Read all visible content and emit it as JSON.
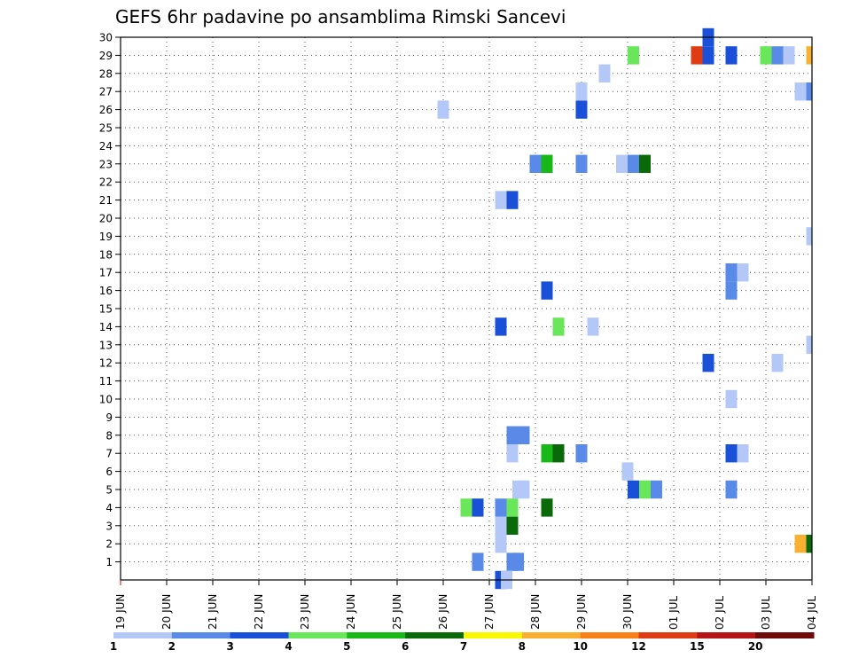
{
  "chart_data": {
    "type": "heatmap",
    "title": "GEFS 6hr padavine po ansamblima Rimski Sancevi",
    "x_ticks": [
      "19 JUN",
      "20 JUN",
      "21 JUN",
      "22 JUN",
      "23 JUN",
      "24 JUN",
      "25 JUN",
      "26 JUN",
      "27 JUN",
      "28 JUN",
      "29 JUN",
      "30 JUN",
      "01 JUL",
      "02 JUL",
      "03 JUL",
      "04 JUL"
    ],
    "y_ticks": [
      "1",
      "2",
      "3",
      "4",
      "5",
      "6",
      "7",
      "8",
      "9",
      "10",
      "11",
      "12",
      "13",
      "14",
      "15",
      "16",
      "17",
      "18",
      "19",
      "20",
      "21",
      "22",
      "23",
      "24",
      "25",
      "26",
      "27",
      "28",
      "29",
      "30"
    ],
    "x_range_days": [
      0,
      15
    ],
    "y_range": [
      0,
      30
    ],
    "grid": true,
    "colorbar": {
      "colors": [
        "#b4c8f8",
        "#5a8ae8",
        "#1a50d8",
        "#6ae65a",
        "#18b818",
        "#0a6a0a",
        "#f8f800",
        "#f8b030",
        "#f88018",
        "#e03c14",
        "#b41414",
        "#6e0a0a"
      ],
      "labels": [
        "1",
        "2",
        "3",
        "4",
        "5",
        "6",
        "7",
        "8",
        "10",
        "12",
        "15",
        "20"
      ]
    },
    "cells": [
      {
        "d": 7.75,
        "m": 1,
        "c": 1
      },
      {
        "d": 8.5,
        "m": 1,
        "c": 1
      },
      {
        "d": 8.625,
        "m": 1,
        "c": 1
      },
      {
        "d": 8.25,
        "m": 0,
        "c": 2
      },
      {
        "d": 8.375,
        "m": 0,
        "c": 0
      },
      {
        "d": 8.25,
        "m": 2,
        "c": 0
      },
      {
        "d": 8.25,
        "m": 3,
        "c": 0
      },
      {
        "d": 8.5,
        "m": 3,
        "c": 5
      },
      {
        "d": 7.5,
        "m": 4,
        "c": 3
      },
      {
        "d": 7.75,
        "m": 4,
        "c": 2
      },
      {
        "d": 8.25,
        "m": 4,
        "c": 1
      },
      {
        "d": 8.5,
        "m": 4,
        "c": 3
      },
      {
        "d": 9.25,
        "m": 4,
        "c": 5
      },
      {
        "d": 8.625,
        "m": 5,
        "c": 0
      },
      {
        "d": 8.75,
        "m": 5,
        "c": 0
      },
      {
        "d": 11.125,
        "m": 5,
        "c": 2
      },
      {
        "d": 11.375,
        "m": 5,
        "c": 3
      },
      {
        "d": 11.625,
        "m": 5,
        "c": 1
      },
      {
        "d": 13.25,
        "m": 5,
        "c": 1
      },
      {
        "d": 11.0,
        "m": 6,
        "c": 0
      },
      {
        "d": 8.5,
        "m": 7,
        "c": 0
      },
      {
        "d": 9.25,
        "m": 7,
        "c": 4
      },
      {
        "d": 9.5,
        "m": 7,
        "c": 5
      },
      {
        "d": 10.0,
        "m": 7,
        "c": 1
      },
      {
        "d": 13.25,
        "m": 7,
        "c": 2
      },
      {
        "d": 13.5,
        "m": 7,
        "c": 0
      },
      {
        "d": 8.5,
        "m": 8,
        "c": 1
      },
      {
        "d": 8.75,
        "m": 8,
        "c": 1
      },
      {
        "d": 13.25,
        "m": 10,
        "c": 0
      },
      {
        "d": 12.75,
        "m": 12,
        "c": 2
      },
      {
        "d": 14.25,
        "m": 12,
        "c": 0
      },
      {
        "d": 15.0,
        "m": 13,
        "c": 0
      },
      {
        "d": 8.25,
        "m": 14,
        "c": 2
      },
      {
        "d": 9.5,
        "m": 14,
        "c": 3
      },
      {
        "d": 10.25,
        "m": 14,
        "c": 0
      },
      {
        "d": 9.25,
        "m": 16,
        "c": 2
      },
      {
        "d": 13.25,
        "m": 16,
        "c": 1
      },
      {
        "d": 13.25,
        "m": 17,
        "c": 1
      },
      {
        "d": 13.5,
        "m": 17,
        "c": 0
      },
      {
        "d": 15.0,
        "m": 19,
        "c": 0
      },
      {
        "d": 8.25,
        "m": 21,
        "c": 0
      },
      {
        "d": 8.5,
        "m": 21,
        "c": 2
      },
      {
        "d": 9.0,
        "m": 23,
        "c": 1
      },
      {
        "d": 9.25,
        "m": 23,
        "c": 4
      },
      {
        "d": 10.0,
        "m": 23,
        "c": 1
      },
      {
        "d": 10.875,
        "m": 23,
        "c": 0
      },
      {
        "d": 11.125,
        "m": 23,
        "c": 1
      },
      {
        "d": 11.375,
        "m": 23,
        "c": 5
      },
      {
        "d": 10.0,
        "m": 26,
        "c": 2
      },
      {
        "d": 7.0,
        "m": 26,
        "c": 0
      },
      {
        "d": 10.0,
        "m": 27,
        "c": 0
      },
      {
        "d": 14.75,
        "m": 27,
        "c": 0
      },
      {
        "d": 15.0,
        "m": 27,
        "c": 1
      },
      {
        "d": 10.5,
        "m": 28,
        "c": 0
      },
      {
        "d": 11.125,
        "m": 29,
        "c": 3
      },
      {
        "d": 12.5,
        "m": 29,
        "c": 9
      },
      {
        "d": 12.75,
        "m": 29,
        "c": 2
      },
      {
        "d": 13.25,
        "m": 29,
        "c": 2
      },
      {
        "d": 14.0,
        "m": 29,
        "c": 3
      },
      {
        "d": 14.25,
        "m": 29,
        "c": 1
      },
      {
        "d": 14.5,
        "m": 29,
        "c": 0
      },
      {
        "d": 15.0,
        "m": 29,
        "c": 7
      },
      {
        "d": 12.75,
        "m": 30,
        "c": 2
      },
      {
        "d": 14.75,
        "m": 2,
        "c": 7
      },
      {
        "d": 15.0,
        "m": 2,
        "c": 5
      }
    ]
  }
}
